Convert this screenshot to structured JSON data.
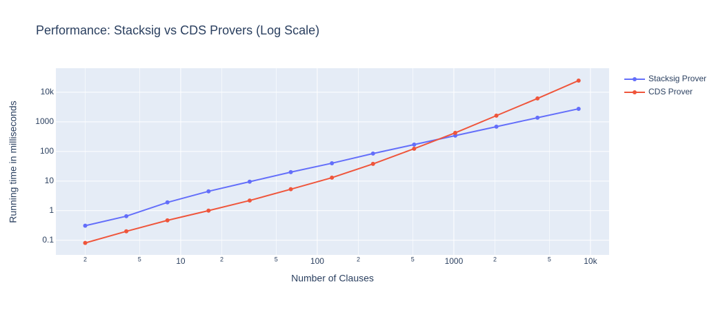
{
  "chart_data": {
    "type": "line",
    "title": "Performance: Stacksig vs CDS Provers (Log Scale)",
    "x_label": "Number of Clauses",
    "y_label": "Running time in milliseconds",
    "x": [
      2,
      4,
      8,
      16,
      32,
      64,
      128,
      256,
      512,
      1024,
      2048,
      4096,
      8192
    ],
    "series": [
      {
        "name": "Stacksig Prover",
        "color": "#636efa",
        "values": [
          0.31,
          0.65,
          1.9,
          4.5,
          9.5,
          20,
          40,
          85,
          171,
          343,
          687,
          1380,
          2760
        ]
      },
      {
        "name": "CDS Prover",
        "color": "#ef553b",
        "values": [
          0.081,
          0.2,
          0.47,
          1,
          2.2,
          5.3,
          13,
          38,
          124,
          425,
          1620,
          6170,
          24800
        ]
      }
    ],
    "xlog": true,
    "ylog": true,
    "xlim": [
      1.22,
      13700
    ],
    "ylim": [
      0.032,
      65000
    ],
    "xticks": [
      2,
      5,
      10,
      {
        "value": 20,
        "label": "2"
      },
      {
        "value": 50,
        "label": "5"
      },
      100,
      {
        "value": 200,
        "label": "2"
      },
      {
        "value": 500,
        "label": "5"
      },
      1000,
      {
        "value": 2000,
        "label": "2"
      },
      {
        "value": 5000,
        "label": "5"
      },
      {
        "value": 10000,
        "label": "10k"
      }
    ],
    "yticks": [
      0.1,
      1,
      10,
      100,
      1000,
      {
        "value": 10000,
        "label": "10k"
      }
    ],
    "grid": true,
    "legend": "right"
  }
}
